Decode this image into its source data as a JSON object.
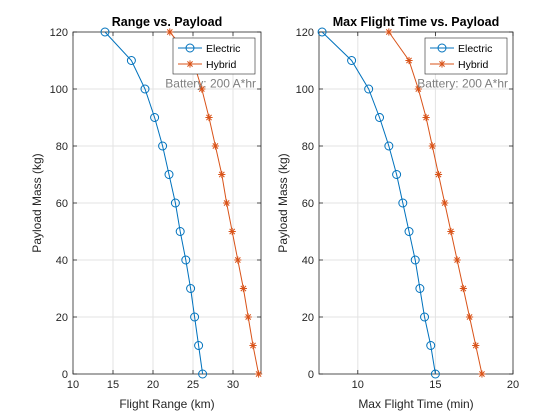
{
  "chart_data": [
    {
      "type": "line",
      "title": "Range vs. Payload",
      "xlabel": "Flight Range (km)",
      "ylabel": "Payload Mass (kg)",
      "xlim": [
        10,
        33.5
      ],
      "ylim": [
        0,
        120
      ],
      "xticks": [
        10,
        15,
        20,
        25,
        30
      ],
      "yticks": [
        0,
        20,
        40,
        60,
        80,
        100,
        120
      ],
      "grid": true,
      "legend_location": "top-right",
      "annotation": "Battery: 200 A*hr",
      "series": [
        {
          "name": "Electric",
          "color": "#0072BD",
          "marker": "circle",
          "points": [
            [
              26.2,
              0
            ],
            [
              25.7,
              10
            ],
            [
              25.2,
              20
            ],
            [
              24.7,
              30
            ],
            [
              24.1,
              40
            ],
            [
              23.4,
              50
            ],
            [
              22.8,
              60
            ],
            [
              22.0,
              70
            ],
            [
              21.2,
              80
            ],
            [
              20.2,
              90
            ],
            [
              19.0,
              100
            ],
            [
              17.3,
              110
            ],
            [
              14.0,
              120
            ]
          ]
        },
        {
          "name": "Hybrid",
          "color": "#D95319",
          "marker": "asterisk",
          "points": [
            [
              33.2,
              0
            ],
            [
              32.5,
              10
            ],
            [
              31.9,
              20
            ],
            [
              31.3,
              30
            ],
            [
              30.6,
              40
            ],
            [
              29.9,
              50
            ],
            [
              29.2,
              60
            ],
            [
              28.6,
              70
            ],
            [
              27.8,
              80
            ],
            [
              27.0,
              90
            ],
            [
              26.1,
              100
            ],
            [
              25.0,
              110
            ],
            [
              22.1,
              120
            ]
          ]
        }
      ]
    },
    {
      "type": "line",
      "title": "Max Flight Time vs. Payload",
      "xlabel": "Max Flight Time (min)",
      "ylabel": "Payload Mass (kg)",
      "xlim": [
        7.5,
        20
      ],
      "ylim": [
        0,
        120
      ],
      "xticks": [
        10,
        15,
        20
      ],
      "yticks": [
        0,
        20,
        40,
        60,
        80,
        100,
        120
      ],
      "grid": true,
      "legend_location": "top-right",
      "annotation": "Battery: 200 A*hr",
      "series": [
        {
          "name": "Electric",
          "color": "#0072BD",
          "marker": "circle",
          "points": [
            [
              15.0,
              0
            ],
            [
              14.7,
              10
            ],
            [
              14.3,
              20
            ],
            [
              14.0,
              30
            ],
            [
              13.7,
              40
            ],
            [
              13.3,
              50
            ],
            [
              12.9,
              60
            ],
            [
              12.5,
              70
            ],
            [
              12.0,
              80
            ],
            [
              11.4,
              90
            ],
            [
              10.7,
              100
            ],
            [
              9.6,
              110
            ],
            [
              7.7,
              120
            ]
          ]
        },
        {
          "name": "Hybrid",
          "color": "#D95319",
          "marker": "asterisk",
          "points": [
            [
              18.0,
              0
            ],
            [
              17.6,
              10
            ],
            [
              17.2,
              20
            ],
            [
              16.8,
              30
            ],
            [
              16.4,
              40
            ],
            [
              16.0,
              50
            ],
            [
              15.6,
              60
            ],
            [
              15.2,
              70
            ],
            [
              14.8,
              80
            ],
            [
              14.4,
              90
            ],
            [
              13.9,
              100
            ],
            [
              13.3,
              110
            ],
            [
              12.0,
              120
            ]
          ]
        }
      ]
    }
  ]
}
